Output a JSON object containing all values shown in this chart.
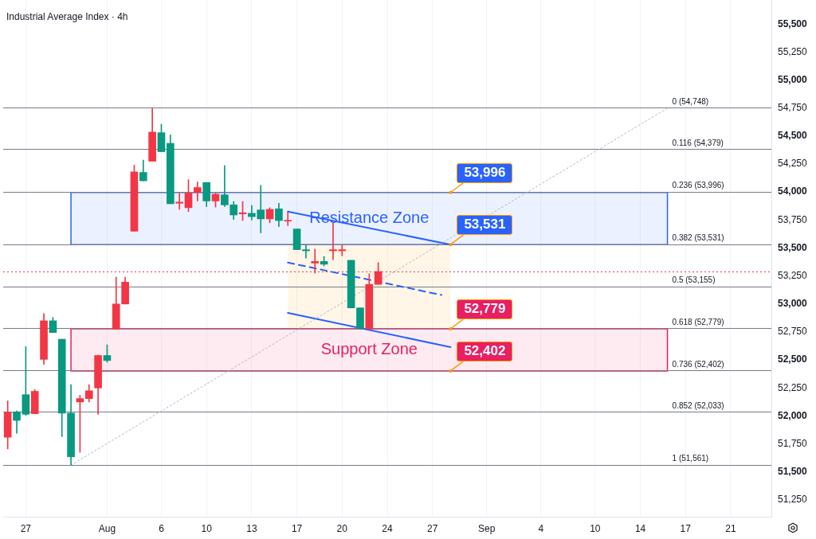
{
  "chart_data": {
    "type": "candlestick",
    "title": "Industrial Average Index · 4h",
    "categories": [
      null,
      null,
      "27",
      null,
      null,
      null,
      null,
      null,
      null,
      null,
      null,
      "Aug",
      null,
      null,
      null,
      null,
      null,
      "6",
      null,
      null,
      null,
      null,
      "10",
      null,
      null,
      null,
      null,
      "13",
      null,
      null,
      null,
      null,
      "17",
      null,
      null,
      null,
      null,
      "20",
      null,
      null,
      null,
      null,
      "24",
      null,
      null,
      null,
      null,
      "27",
      null,
      null,
      null,
      null,
      null,
      "Sep",
      null,
      null,
      null,
      null,
      null,
      "4",
      null,
      null,
      null,
      null,
      null,
      "10",
      null,
      null,
      null,
      null,
      "14",
      null,
      null,
      null,
      null,
      "17",
      null,
      null,
      null,
      null,
      "21",
      null,
      null,
      null,
      null
    ],
    "ohlc": [
      [
        52030,
        52135,
        51705,
        51810
      ],
      [
        51960,
        52045,
        51845,
        52035
      ],
      [
        52015,
        52620,
        52005,
        52190
      ],
      [
        52220,
        52235,
        52020,
        52020
      ],
      [
        52850,
        52915,
        52460,
        52505
      ],
      [
        52745,
        52880,
        52745,
        52850
      ],
      [
        52025,
        52685,
        51815,
        52685
      ],
      [
        51635,
        52280,
        51561,
        52025
      ],
      [
        52155,
        52185,
        51675,
        52125
      ],
      [
        52225,
        52280,
        52125,
        52155
      ],
      [
        52540,
        52545,
        52015,
        52250
      ],
      [
        52495,
        52635,
        52480,
        52540
      ],
      [
        53000,
        53240,
        52775,
        52775
      ],
      [
        53195,
        53240,
        53000,
        53000
      ],
      [
        54180,
        54240,
        53650,
        53650
      ],
      [
        54100,
        54285,
        54100,
        54175
      ],
      [
        54535,
        54748,
        54275,
        54275
      ],
      [
        54360,
        54605,
        54360,
        54530
      ],
      [
        53895,
        54510,
        53895,
        54435
      ],
      [
        53910,
        53990,
        53845,
        53900
      ],
      [
        53990,
        54110,
        53825,
        53860
      ],
      [
        54040,
        54090,
        53920,
        53995
      ],
      [
        53920,
        54085,
        53870,
        54085
      ],
      [
        53980,
        53990,
        53865,
        53920
      ],
      [
        53885,
        54235,
        53870,
        53975
      ],
      [
        53795,
        53915,
        53755,
        53885
      ],
      [
        53815,
        53915,
        53745,
        53805
      ],
      [
        53780,
        53880,
        53750,
        53810
      ],
      [
        53760,
        54060,
        53635,
        53840
      ],
      [
        53845,
        53860,
        53725,
        53760
      ],
      [
        53745,
        53900,
        53690,
        53850
      ],
      [
        53745,
        53820,
        53700,
        53740
      ],
      [
        53485,
        53670,
        53485,
        53670
      ],
      [
        53475,
        53530,
        53410,
        53485
      ],
      [
        53380,
        53490,
        53275,
        53365
      ],
      [
        53355,
        53425,
        53340,
        53380
      ],
      [
        53485,
        53725,
        53395,
        53475
      ],
      [
        53485,
        53530,
        53430,
        53475
      ],
      [
        52965,
        53390,
        52965,
        53390
      ],
      [
        52779,
        52965,
        52779,
        52965
      ],
      [
        53175,
        53270,
        52779,
        52779
      ],
      [
        53290,
        53370,
        53175,
        53175
      ],
      null,
      null,
      null,
      null,
      null,
      null,
      null,
      null,
      null,
      null,
      null,
      null,
      null,
      null,
      null,
      null,
      null,
      null,
      null,
      null,
      null,
      null,
      null,
      null,
      null,
      null,
      null,
      null,
      null,
      null,
      null,
      null,
      null,
      null,
      null,
      null,
      null,
      null,
      null,
      null,
      null,
      null,
      null
    ],
    "colors": [
      "#f23645",
      "#089981",
      "#089981",
      "#f23645",
      "#f23645",
      "#089981",
      "#089981",
      "#089981",
      "#f23645",
      "#f23645",
      "#f23645",
      "#089981",
      "#f23645",
      "#f23645",
      "#f23645",
      "#089981",
      "#f23645",
      "#089981",
      "#089981",
      "#f23645",
      "#f23645",
      "#f23645",
      "#089981",
      "#f23645",
      "#089981",
      "#089981",
      "#f23645",
      "#089981",
      "#089981",
      "#f23645",
      "#089981",
      "#f23645",
      "#089981",
      "#089981",
      "#f23645",
      "#089981",
      "#f23645",
      "#f23645",
      "#089981",
      "#089981",
      "#f23645",
      "#f23645",
      null,
      null,
      null,
      null,
      null,
      null,
      null,
      null,
      null,
      null,
      null,
      null,
      null,
      null,
      null,
      null,
      null,
      null,
      null,
      null,
      null,
      null,
      null,
      null,
      null,
      null,
      null,
      null,
      null,
      null,
      null,
      null,
      null,
      null,
      null,
      null,
      null,
      null,
      null,
      null,
      null,
      null,
      null
    ],
    "series": [
      {
        "type": "line",
        "color": "#b2b5be",
        "line_style": "dotted",
        "values": [
          null,
          null,
          null,
          null,
          null,
          null,
          null,
          51561,
          null,
          null,
          null,
          null,
          null,
          null,
          null,
          null,
          null,
          null,
          null,
          null,
          null,
          null,
          null,
          null,
          null,
          null,
          null,
          null,
          null,
          null,
          null,
          null,
          null,
          null,
          null,
          null,
          null,
          null,
          null,
          null,
          null,
          null,
          null,
          null,
          null,
          null,
          null,
          null,
          null,
          null,
          null,
          null,
          null,
          null,
          null,
          null,
          null,
          null,
          null,
          null,
          null,
          null,
          null,
          null,
          null,
          null,
          null,
          null,
          null,
          null,
          null,
          null,
          null,
          54748,
          null,
          null,
          null,
          null,
          null,
          null,
          null,
          null,
          null,
          null,
          null
        ]
      },
      {
        "type": "line",
        "color": "#2962ff",
        "line_style": "solid",
        "values": [
          null,
          null,
          null,
          null,
          null,
          null,
          null,
          null,
          null,
          null,
          null,
          null,
          null,
          null,
          null,
          null,
          null,
          null,
          null,
          null,
          null,
          null,
          null,
          null,
          null,
          null,
          null,
          null,
          null,
          null,
          null,
          53825,
          null,
          null,
          null,
          null,
          null,
          null,
          null,
          null,
          null,
          null,
          null,
          null,
          null,
          null,
          null,
          null,
          null,
          53530,
          null,
          null,
          null,
          null,
          null,
          null,
          null,
          null,
          null,
          null,
          null,
          null,
          null,
          null,
          null,
          null,
          null,
          null,
          null,
          null,
          null,
          null,
          null,
          null,
          null,
          null,
          null,
          null,
          null,
          null,
          null,
          null,
          null,
          null,
          null
        ]
      },
      {
        "type": "line",
        "color": "#2962ff",
        "line_style": "dashed",
        "values": [
          null,
          null,
          null,
          null,
          null,
          null,
          null,
          null,
          null,
          null,
          null,
          null,
          null,
          null,
          null,
          null,
          null,
          null,
          null,
          null,
          null,
          null,
          null,
          null,
          null,
          null,
          null,
          null,
          null,
          null,
          null,
          53370,
          null,
          null,
          null,
          null,
          null,
          null,
          null,
          null,
          null,
          null,
          null,
          null,
          null,
          null,
          null,
          null,
          53080,
          null,
          null,
          null,
          null,
          null,
          null,
          null,
          null,
          null,
          null,
          null,
          null,
          null,
          null,
          null,
          null,
          null,
          null,
          null,
          null,
          null,
          null,
          null,
          null,
          null,
          null,
          null,
          null,
          null,
          null,
          null,
          null,
          null,
          null,
          null,
          null
        ]
      },
      {
        "type": "line",
        "color": "#2962ff",
        "line_style": "solid",
        "values": [
          null,
          null,
          null,
          null,
          null,
          null,
          null,
          null,
          null,
          null,
          null,
          null,
          null,
          null,
          null,
          null,
          null,
          null,
          null,
          null,
          null,
          null,
          null,
          null,
          null,
          null,
          null,
          null,
          null,
          null,
          null,
          52920,
          null,
          null,
          null,
          null,
          null,
          null,
          null,
          null,
          null,
          null,
          null,
          null,
          null,
          null,
          null,
          null,
          null,
          52615,
          null,
          null,
          null,
          null,
          null,
          null,
          null,
          null,
          null,
          null,
          null,
          null,
          null,
          null,
          null,
          null,
          null,
          null,
          null,
          null,
          null,
          null,
          null,
          null,
          null,
          null,
          null,
          null,
          null,
          null,
          null,
          null,
          null,
          null,
          null
        ]
      }
    ],
    "ylim": [
      51100,
      55715
    ],
    "yticks": [
      {
        "value": 51250,
        "label": "51,250"
      },
      {
        "value": 51500,
        "label": "51,500"
      },
      {
        "value": 51750,
        "label": "51,750"
      },
      {
        "value": 52000,
        "label": "52,000"
      },
      {
        "value": 52250,
        "label": "52,250"
      },
      {
        "value": 52500,
        "label": "52,500"
      },
      {
        "value": 52750,
        "label": "52,750"
      },
      {
        "value": 53000,
        "label": "53,000"
      },
      {
        "value": 53250,
        "label": "53,250"
      },
      {
        "value": 53500,
        "label": "53,500"
      },
      {
        "value": 53750,
        "label": "53,750"
      },
      {
        "value": 54000,
        "label": "54,000"
      },
      {
        "value": 54250,
        "label": "54,250"
      },
      {
        "value": 54500,
        "label": "54,500"
      },
      {
        "value": 54750,
        "label": "54,750"
      },
      {
        "value": 55000,
        "label": "55,000"
      },
      {
        "value": 55250,
        "label": "55,250"
      },
      {
        "value": 55500,
        "label": "55,500"
      }
    ],
    "grid": "x",
    "legend": false,
    "bands": [
      {
        "axis": "y",
        "from": 53531,
        "to": 53996,
        "label": "Resistance Zone",
        "color": "#2962ff"
      },
      {
        "axis": "y",
        "from": 52402,
        "to": 52779,
        "label": "Support Zone",
        "color": "#e91e63"
      },
      {
        "axis": "y",
        "from": 52779,
        "to": 53531,
        "color": "#ff9800"
      }
    ],
    "ref_lines": [
      {
        "axis": "y",
        "value": 54748,
        "label": "0 (54,748)",
        "color": "#787b86"
      },
      {
        "axis": "y",
        "value": 54379,
        "label": "0.116 (54,379)",
        "color": "#787b86"
      },
      {
        "axis": "y",
        "value": 53996,
        "label": "0.236 (53,996)",
        "color": "#787b86"
      },
      {
        "axis": "y",
        "value": 53531,
        "label": "0.382 (53,531)",
        "color": "#787b86"
      },
      {
        "axis": "y",
        "value": 53155,
        "label": "0.5 (53,155)",
        "color": "#787b86"
      },
      {
        "axis": "y",
        "value": 52779,
        "label": "0.618 (52,779)",
        "color": "#787b86"
      },
      {
        "axis": "y",
        "value": 52402,
        "label": "0.736 (52,402)",
        "color": "#787b86"
      },
      {
        "axis": "y",
        "value": 52033,
        "label": "0.852 (52,033)",
        "color": "#787b86"
      },
      {
        "axis": "y",
        "value": 51561,
        "label": "1 (51,561)",
        "color": "#787b86"
      },
      {
        "axis": "y",
        "value": 53285,
        "color": "#f23645",
        "line_style": "dotted"
      }
    ],
    "annotations": [
      {
        "text": "53,996",
        "y": 53996
      },
      {
        "text": "53,531",
        "y": 53531
      },
      {
        "text": "52,779",
        "y": 52779
      },
      {
        "text": "52,402",
        "y": 52402
      }
    ]
  }
}
